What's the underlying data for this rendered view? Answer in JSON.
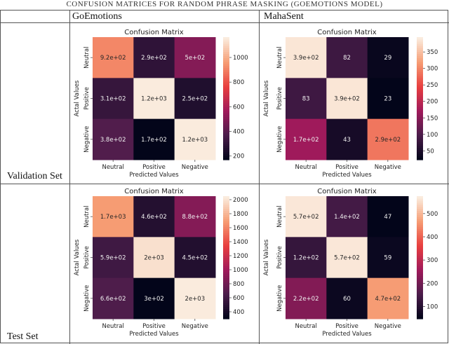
{
  "caption": "CONFUSION MATRICES FOR RANDOM PHRASE MASKING (GOEMOTIONS MODEL)",
  "table": {
    "columns": [
      "GoEmotions",
      "MahaSent"
    ],
    "rows": [
      "Validation Set",
      "Test Set"
    ]
  },
  "chart_data": [
    {
      "type": "heatmap",
      "dataset": "GoEmotions",
      "split": "Validation Set",
      "title": "Confusion Matrix",
      "xlabel": "Predicted Values",
      "ylabel": "Actal Values",
      "x_categories": [
        "Neutral",
        "Positive",
        "Negative"
      ],
      "y_categories": [
        "Neutral",
        "Positive",
        "Negative"
      ],
      "annotations": [
        [
          "9.2e+02",
          "2.9e+02",
          "5e+02"
        ],
        [
          "3.1e+02",
          "1.2e+03",
          "2.5e+02"
        ],
        [
          "3.8e+02",
          "1.7e+02",
          "1.2e+03"
        ]
      ],
      "values": [
        [
          920,
          290,
          500
        ],
        [
          310,
          1200,
          250
        ],
        [
          380,
          170,
          1200
        ]
      ],
      "colorbar_range": [
        170,
        1165
      ],
      "colorbar_ticks": [
        200,
        400,
        600,
        800,
        1000
      ],
      "colormap": "rocket"
    },
    {
      "type": "heatmap",
      "dataset": "MahaSent",
      "split": "Validation Set",
      "title": "Confusion Matrix",
      "xlabel": "Predicted Values",
      "ylabel": "Actal Values",
      "x_categories": [
        "Neutral",
        "Positive",
        "Negative"
      ],
      "y_categories": [
        "Neutral",
        "Positive",
        "Negative"
      ],
      "annotations": [
        [
          "3.9e+02",
          "82",
          "29"
        ],
        [
          "83",
          "3.9e+02",
          "23"
        ],
        [
          "1.7e+02",
          "43",
          "2.9e+02"
        ]
      ],
      "values": [
        [
          390,
          82,
          29
        ],
        [
          83,
          390,
          23
        ],
        [
          170,
          43,
          290
        ]
      ],
      "colorbar_range": [
        23,
        395
      ],
      "colorbar_ticks": [
        50,
        100,
        150,
        200,
        250,
        300,
        350
      ],
      "colormap": "rocket"
    },
    {
      "type": "heatmap",
      "dataset": "GoEmotions",
      "split": "Test Set",
      "title": "Confusion Matrix",
      "xlabel": "Predicted Values",
      "ylabel": "Actal Values",
      "x_categories": [
        "Neutral",
        "Positive",
        "Negative"
      ],
      "y_categories": [
        "Neutral",
        "Positive",
        "Negative"
      ],
      "annotations": [
        [
          "1.7e+03",
          "4.6e+02",
          "8.8e+02"
        ],
        [
          "5.9e+02",
          "2e+03",
          "4.5e+02"
        ],
        [
          "6.6e+02",
          "3e+02",
          "2e+03"
        ]
      ],
      "values": [
        [
          1700,
          460,
          880
        ],
        [
          590,
          2000,
          450
        ],
        [
          660,
          300,
          2050
        ]
      ],
      "colorbar_range": [
        300,
        2050
      ],
      "colorbar_ticks": [
        400,
        600,
        800,
        1000,
        1200,
        1400,
        1600,
        1800,
        2000
      ],
      "colormap": "rocket"
    },
    {
      "type": "heatmap",
      "dataset": "MahaSent",
      "split": "Test Set",
      "title": "Confusion Matrix",
      "xlabel": "Predicted Values",
      "ylabel": "Actal Values",
      "x_categories": [
        "Neutral",
        "Positive",
        "Negative"
      ],
      "y_categories": [
        "Neutral",
        "Positive",
        "Negative"
      ],
      "annotations": [
        [
          "5.7e+02",
          "1.4e+02",
          "47"
        ],
        [
          "1.2e+02",
          "5.7e+02",
          "59"
        ],
        [
          "2.2e+02",
          "60",
          "4.7e+02"
        ]
      ],
      "values": [
        [
          570,
          140,
          47
        ],
        [
          120,
          570,
          59
        ],
        [
          220,
          60,
          470
        ]
      ],
      "colorbar_range": [
        47,
        575
      ],
      "colorbar_ticks": [
        100,
        200,
        300,
        400,
        500
      ],
      "colormap": "rocket"
    }
  ]
}
